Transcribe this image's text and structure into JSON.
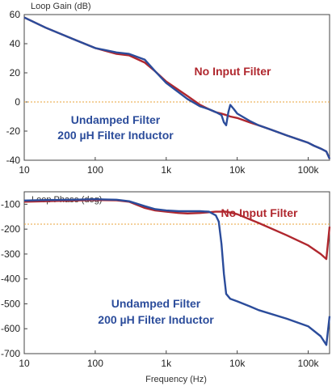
{
  "chart_data": [
    {
      "type": "line",
      "title": "Loop Gain (dB)",
      "xscale": "log",
      "xlim": [
        10,
        200000
      ],
      "ylim": [
        -40,
        60
      ],
      "yticks": [
        60,
        40,
        20,
        0,
        -20,
        -40
      ],
      "xticks": [
        10,
        100,
        1000,
        10000,
        100000
      ],
      "xtick_labels": [
        "10",
        "100",
        "1k",
        "10k",
        "100k"
      ],
      "grid": false,
      "reference_line": {
        "y": 0,
        "style": "dotted",
        "color": "#E8A33A"
      },
      "annotations": [
        {
          "text": "No Input Filter",
          "color": "#B0272E"
        },
        {
          "line1": "Undamped Filter",
          "line2": "200 µH Filter Inductor",
          "color": "#2B4C9B"
        }
      ],
      "series": [
        {
          "color": "#B0272E",
          "x": [
            10,
            20,
            50,
            100,
            200,
            300,
            500,
            700,
            1000,
            2000,
            3000,
            4000,
            5000,
            6000,
            7000,
            8000,
            10000,
            15000,
            20000,
            30000,
            50000,
            100000,
            120000,
            150000,
            180000,
            200000
          ],
          "y": [
            58,
            51,
            43,
            37,
            33,
            32,
            27,
            21,
            14,
            4,
            -2,
            -5,
            -7,
            -8,
            -9,
            -10,
            -11,
            -14,
            -16,
            -19,
            -23,
            -28,
            -30,
            -32,
            -34,
            -39
          ]
        },
        {
          "color": "#2B4C9B",
          "x": [
            10,
            20,
            50,
            100,
            200,
            300,
            500,
            700,
            1000,
            2000,
            3000,
            4000,
            5000,
            6000,
            6500,
            7000,
            7500,
            8000,
            9000,
            10000,
            15000,
            20000,
            30000,
            50000,
            100000,
            120000,
            150000,
            180000,
            200000
          ],
          "y": [
            58,
            51,
            43,
            37,
            34,
            33,
            29,
            21,
            13,
            2,
            -3,
            -5,
            -7,
            -9,
            -14,
            -16,
            -7,
            -2,
            -5,
            -8,
            -13,
            -16,
            -19,
            -23,
            -28,
            -30,
            -32,
            -34,
            -39
          ]
        }
      ]
    },
    {
      "type": "line",
      "title": "Loop Phase (deg)",
      "xlabel": "Frequency (Hz)",
      "xscale": "log",
      "xlim": [
        10,
        200000
      ],
      "ylim": [
        -700,
        -50
      ],
      "yticks": [
        -100,
        -200,
        -300,
        -400,
        -500,
        -600,
        -700
      ],
      "xticks": [
        10,
        100,
        1000,
        10000,
        100000
      ],
      "xtick_labels": [
        "10",
        "100",
        "1k",
        "10k",
        "100k"
      ],
      "grid": false,
      "reference_line": {
        "y": -180,
        "style": "dotted",
        "color": "#E8A33A"
      },
      "annotations": [
        {
          "text": "No Input Filter",
          "color": "#B0272E"
        },
        {
          "line1": "Undamped Filter",
          "line2": "200 µH Filter Inductor",
          "color": "#2B4C9B"
        }
      ],
      "series": [
        {
          "color": "#B0272E",
          "x": [
            10,
            20,
            50,
            100,
            200,
            300,
            500,
            700,
            1000,
            1500,
            2000,
            3000,
            5000,
            7000,
            10000,
            20000,
            50000,
            100000,
            150000,
            180000,
            200000
          ],
          "y": [
            -90,
            -88,
            -85,
            -83,
            -84,
            -90,
            -115,
            -125,
            -130,
            -135,
            -137,
            -135,
            -130,
            -130,
            -140,
            -175,
            -225,
            -265,
            -300,
            -320,
            -190
          ]
        },
        {
          "color": "#2B4C9B",
          "x": [
            10,
            20,
            50,
            100,
            200,
            300,
            500,
            700,
            1000,
            1500,
            2000,
            3000,
            4000,
            5000,
            5500,
            6000,
            6500,
            7000,
            8000,
            10000,
            15000,
            20000,
            50000,
            100000,
            150000,
            180000,
            200000
          ],
          "y": [
            -85,
            -83,
            -82,
            -80,
            -82,
            -88,
            -108,
            -120,
            -125,
            -128,
            -128,
            -128,
            -130,
            -145,
            -170,
            -260,
            -380,
            -460,
            -480,
            -490,
            -510,
            -525,
            -560,
            -590,
            -630,
            -665,
            -550
          ]
        }
      ]
    }
  ]
}
